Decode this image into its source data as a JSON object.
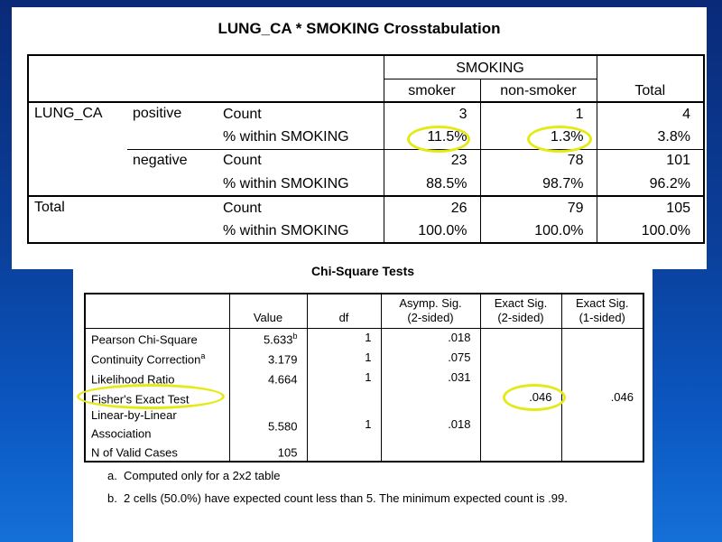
{
  "crosstab": {
    "title": "LUNG_CA * SMOKING Crosstabulation",
    "col_group": "SMOKING",
    "col_smoker": "smoker",
    "col_nonsmoker": "non-smoker",
    "col_total": "Total",
    "row_var": "LUNG_CA",
    "total_label": "Total",
    "positive": {
      "label": "positive",
      "count_label": "Count",
      "pct_label": "% within SMOKING",
      "count": [
        "3",
        "1",
        "4"
      ],
      "pct": [
        "11.5%",
        "1.3%",
        "3.8%"
      ]
    },
    "negative": {
      "label": "negative",
      "count_label": "Count",
      "pct_label": "% within SMOKING",
      "count": [
        "23",
        "78",
        "101"
      ],
      "pct": [
        "88.5%",
        "98.7%",
        "96.2%"
      ]
    },
    "total": {
      "count_label": "Count",
      "pct_label": "% within SMOKING",
      "count": [
        "26",
        "79",
        "105"
      ],
      "pct": [
        "100.0%",
        "100.0%",
        "100.0%"
      ]
    }
  },
  "chisq": {
    "title": "Chi-Square Tests",
    "headers": {
      "value": "Value",
      "df": "df",
      "asymp_line1": "Asymp. Sig.",
      "asymp_line2": "(2-sided)",
      "exact2_line1": "Exact Sig.",
      "exact2_line2": "(2-sided)",
      "exact1_line1": "Exact Sig.",
      "exact1_line2": "(1-sided)"
    },
    "rows": [
      {
        "label": "Pearson Chi-Square",
        "label_sup": "",
        "value": "5.633",
        "value_sup": "b",
        "df": "1",
        "asymp": ".018",
        "exact2": "",
        "exact1": ""
      },
      {
        "label": "Continuity Correction",
        "label_sup": "a",
        "value": "3.179",
        "value_sup": "",
        "df": "1",
        "asymp": ".075",
        "exact2": "",
        "exact1": ""
      },
      {
        "label": "Likelihood Ratio",
        "label_sup": "",
        "value": "4.664",
        "value_sup": "",
        "df": "1",
        "asymp": ".031",
        "exact2": "",
        "exact1": ""
      },
      {
        "label": "Fisher's Exact Test",
        "label_sup": "",
        "value": "",
        "value_sup": "",
        "df": "",
        "asymp": "",
        "exact2": ".046",
        "exact1": ".046"
      },
      {
        "label": "Linear-by-Linear Association",
        "label_sup": "",
        "value": "5.580",
        "value_sup": "",
        "df": "1",
        "asymp": ".018",
        "exact2": "",
        "exact1": ""
      },
      {
        "label": "N of Valid Cases",
        "label_sup": "",
        "value": "105",
        "value_sup": "",
        "df": "",
        "asymp": "",
        "exact2": "",
        "exact1": ""
      }
    ],
    "footnotes": [
      {
        "mark": "a.",
        "text": "Computed only for a 2x2 table"
      },
      {
        "mark": "b.",
        "text": "2 cells (50.0%) have expected count less than 5. The minimum expected count is .99."
      }
    ]
  },
  "colors": {
    "highlight": "#e5ea16",
    "background_top": "#0a2a78",
    "background_bottom": "#1470d8"
  }
}
